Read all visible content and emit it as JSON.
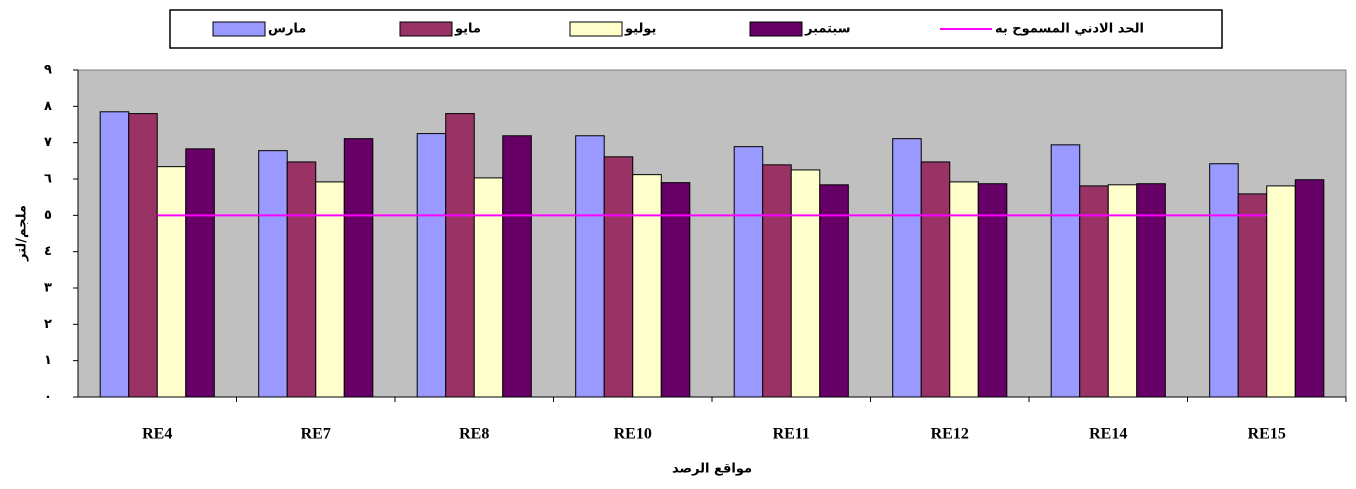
{
  "chart_data": {
    "type": "bar",
    "x_label": "مواقع الرصد",
    "y_label": "ملجم/لتر",
    "categories": [
      "RE4",
      "RE7",
      "RE8",
      "RE10",
      "RE11",
      "RE12",
      "RE14",
      "RE15"
    ],
    "series": [
      {
        "name": "مارس",
        "color": "#9999FF",
        "values": [
          7.85,
          6.78,
          7.25,
          7.19,
          6.89,
          7.11,
          6.94,
          6.42
        ]
      },
      {
        "name": "مايو",
        "color": "#993366",
        "values": [
          7.8,
          6.47,
          7.8,
          6.61,
          6.39,
          6.47,
          5.81,
          5.59
        ]
      },
      {
        "name": "يوليو",
        "color": "#FFFFCC",
        "values": [
          6.34,
          5.92,
          6.03,
          6.12,
          6.25,
          5.92,
          5.84,
          5.81
        ]
      },
      {
        "name": "سبتمبر",
        "color": "#660066",
        "values": [
          6.83,
          7.11,
          7.19,
          5.9,
          5.84,
          5.87,
          5.87,
          5.98
        ]
      },
      {
        "name": "الحد الادني المسموح به",
        "color": "#FF00FF",
        "type": "line",
        "values": [
          5,
          5,
          5,
          5,
          5,
          5,
          5,
          5
        ]
      }
    ],
    "ylim": [
      0,
      9
    ],
    "yticks": [
      {
        "value": 0,
        "label": "٠"
      },
      {
        "value": 1,
        "label": "١"
      },
      {
        "value": 2,
        "label": "٢"
      },
      {
        "value": 3,
        "label": "٣"
      },
      {
        "value": 4,
        "label": "٤"
      },
      {
        "value": 5,
        "label": "٥"
      },
      {
        "value": 6,
        "label": "٦"
      },
      {
        "value": 7,
        "label": "٧"
      },
      {
        "value": 8,
        "label": "٨"
      },
      {
        "value": 9,
        "label": "٩"
      }
    ],
    "background": "#C0C0C0"
  }
}
